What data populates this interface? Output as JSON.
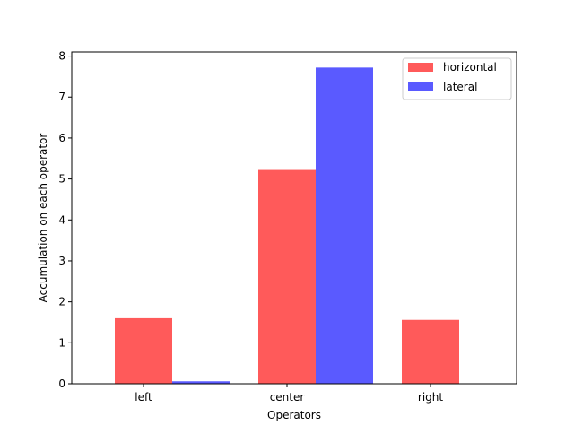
{
  "chart_data": {
    "type": "bar",
    "title": "",
    "xlabel": "Operators",
    "ylabel": "Accumulation on each operator",
    "categories": [
      "left",
      "center",
      "right"
    ],
    "series": [
      {
        "name": "horizontal",
        "color": "#ff5a5a",
        "values": [
          1.6,
          5.22,
          1.56
        ]
      },
      {
        "name": "lateral",
        "color": "#5a5aff",
        "values": [
          0.06,
          7.72,
          0.0
        ]
      }
    ],
    "ylim": [
      0,
      8.1
    ],
    "yticks": [
      0,
      1,
      2,
      3,
      4,
      5,
      6,
      7,
      8
    ],
    "grid": false,
    "legend_position": "top-right"
  }
}
